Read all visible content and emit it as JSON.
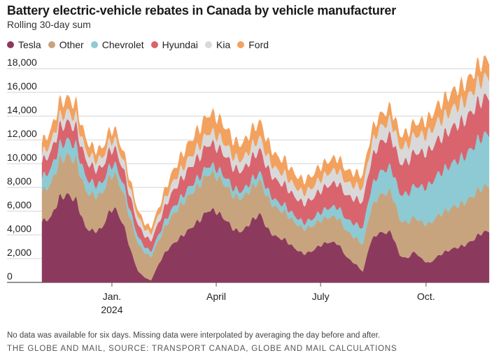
{
  "chart_data": {
    "type": "area",
    "stacked": true,
    "title": "Battery electric-vehicle rebates in Canada by vehicle manufacturer",
    "subtitle": "Rolling 30-day sum",
    "xlabel": "",
    "ylabel": "",
    "ylim": [
      0,
      18600
    ],
    "y_ticks": [
      {
        "value": 0,
        "label": "0"
      },
      {
        "value": 2000,
        "label": "2,000"
      },
      {
        "value": 4000,
        "label": "4,000"
      },
      {
        "value": 6000,
        "label": "6,000"
      },
      {
        "value": 8000,
        "label": "8,000"
      },
      {
        "value": 10000,
        "label": "10,000"
      },
      {
        "value": 12000,
        "label": "12,000"
      },
      {
        "value": 14000,
        "label": "14,000"
      },
      {
        "value": 16000,
        "label": "16,000"
      },
      {
        "value": 18000,
        "label": "18,000"
      }
    ],
    "x_unit": "days since 2023-11-01",
    "x_range": [
      0,
      390
    ],
    "x_ticks": [
      {
        "day": 61,
        "label": "Jan.",
        "sublabel": "2024"
      },
      {
        "day": 152,
        "label": "April",
        "sublabel": ""
      },
      {
        "day": 243,
        "label": "July",
        "sublabel": ""
      },
      {
        "day": 335,
        "label": "Oct.",
        "sublabel": ""
      }
    ],
    "x": [
      0,
      8,
      15,
      22,
      30,
      38,
      45,
      52,
      58,
      62,
      66,
      72,
      78,
      84,
      90,
      95,
      102,
      108,
      115,
      122,
      130,
      138,
      145,
      152,
      160,
      168,
      175,
      182,
      190,
      198,
      205,
      212,
      220,
      228,
      235,
      242,
      250,
      258,
      266,
      274,
      280,
      286,
      292,
      298,
      305,
      312,
      318,
      325,
      332,
      338,
      345,
      352,
      360,
      368,
      375,
      382,
      388,
      390
    ],
    "series": [
      {
        "name": "Tesla",
        "color": "#8b3a5e",
        "values": [
          5100,
          5500,
          7100,
          7400,
          6900,
          4600,
          4300,
          4500,
          5800,
          6300,
          5900,
          4600,
          2500,
          900,
          400,
          150,
          1600,
          2600,
          3300,
          3900,
          4600,
          5300,
          6100,
          6000,
          5300,
          4400,
          4300,
          5100,
          5800,
          4300,
          3800,
          3600,
          2900,
          2400,
          2600,
          3100,
          3400,
          3300,
          2100,
          1500,
          900,
          3300,
          4100,
          4200,
          4200,
          2300,
          2000,
          2600,
          1900,
          1600,
          2200,
          2600,
          2900,
          3100,
          3500,
          4100,
          4300,
          4300
        ]
      },
      {
        "name": "Other",
        "color": "#c8a47e",
        "values": [
          2500,
          2800,
          3100,
          3300,
          3300,
          3100,
          3000,
          2900,
          2900,
          2900,
          2800,
          2600,
          2500,
          2300,
          2100,
          2000,
          2000,
          2200,
          2500,
          2700,
          2900,
          3000,
          3100,
          3000,
          2900,
          2800,
          2800,
          2800,
          2800,
          2600,
          2400,
          2300,
          2200,
          2100,
          2100,
          2100,
          2100,
          2200,
          2200,
          2200,
          2300,
          2600,
          3000,
          3300,
          3400,
          3000,
          3000,
          2900,
          3100,
          3300,
          3400,
          3400,
          3500,
          3600,
          3700,
          3800,
          3800,
          3800
        ]
      },
      {
        "name": "Chevrolet",
        "color": "#8ecad3",
        "values": [
          1200,
          1300,
          1300,
          1300,
          1300,
          1200,
          1000,
          900,
          900,
          900,
          850,
          800,
          700,
          600,
          500,
          450,
          500,
          550,
          600,
          650,
          700,
          700,
          700,
          700,
          700,
          650,
          600,
          650,
          700,
          650,
          600,
          600,
          550,
          550,
          600,
          700,
          800,
          900,
          1000,
          1200,
          1400,
          1700,
          1900,
          2000,
          2100,
          2200,
          2400,
          2700,
          3000,
          3300,
          3500,
          3600,
          3800,
          3900,
          4100,
          4300,
          4400,
          4400
        ]
      },
      {
        "name": "Hyundai",
        "color": "#d9646e",
        "values": [
          1300,
          1400,
          1500,
          1500,
          1500,
          1400,
          1300,
          1300,
          1300,
          1300,
          1250,
          1200,
          1100,
          1000,
          900,
          900,
          1000,
          1200,
          1400,
          1500,
          1600,
          1700,
          1800,
          1800,
          1800,
          1700,
          1700,
          1800,
          1900,
          1800,
          1700,
          1700,
          1600,
          1600,
          1700,
          1800,
          1900,
          2000,
          2000,
          2100,
          2200,
          2300,
          2400,
          2500,
          2600,
          2600,
          2700,
          2800,
          2900,
          2900,
          2900,
          2900,
          3000,
          3000,
          3100,
          3100,
          3100,
          3100
        ]
      },
      {
        "name": "Kia",
        "color": "#d9d9d9",
        "values": [
          700,
          800,
          900,
          900,
          900,
          850,
          800,
          800,
          800,
          800,
          780,
          750,
          700,
          650,
          600,
          600,
          650,
          700,
          800,
          850,
          900,
          950,
          1000,
          1000,
          1000,
          950,
          950,
          1000,
          1050,
          1000,
          950,
          950,
          900,
          900,
          950,
          1000,
          1050,
          1100,
          1100,
          1150,
          1200,
          1250,
          1300,
          1300,
          1350,
          1350,
          1400,
          1450,
          1500,
          1500,
          1550,
          1550,
          1600,
          1600,
          1650,
          1700,
          1700,
          1700
        ]
      },
      {
        "name": "Ford",
        "color": "#f3a15e",
        "values": [
          900,
          1000,
          1100,
          1100,
          1000,
          900,
          800,
          800,
          800,
          800,
          750,
          700,
          600,
          500,
          450,
          450,
          550,
          700,
          900,
          1100,
          1300,
          1400,
          1500,
          1500,
          1400,
          1300,
          1300,
          1300,
          1300,
          1200,
          1100,
          1100,
          1000,
          1000,
          1000,
          1000,
          1000,
          1000,
          1000,
          1000,
          1000,
          1000,
          1000,
          1000,
          1000,
          1000,
          1000,
          1000,
          1100,
          1200,
          1300,
          1400,
          1400,
          1400,
          1400,
          1400,
          1400,
          1400
        ]
      }
    ]
  },
  "footnote": "No data was available for six days. Missing data were interpolated by averaging the day before and after.",
  "credit": "THE GLOBE AND MAIL, SOURCE: TRANSPORT CANADA, GLOBE AND MAIL CALCULATIONS"
}
